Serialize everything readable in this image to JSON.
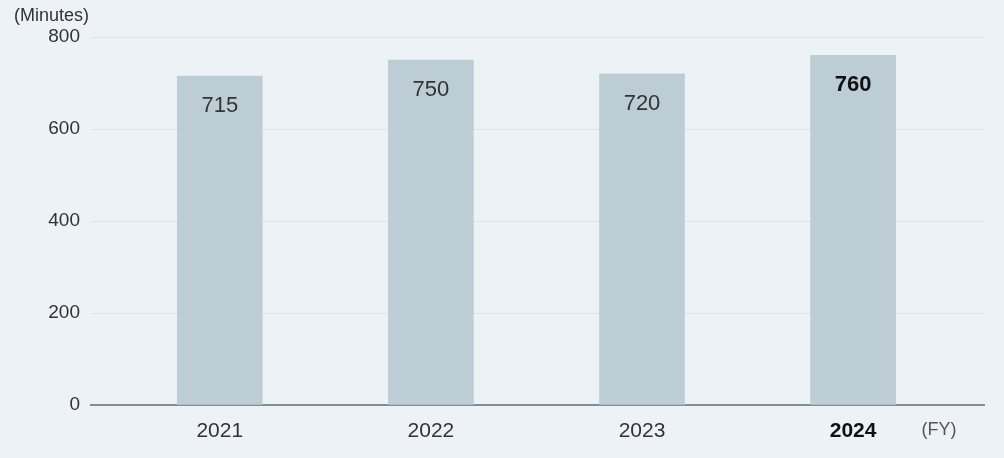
{
  "chart_data": {
    "type": "bar",
    "ylabel": "(Minutes)",
    "xlabel": "(FY)",
    "categories": [
      "2021",
      "2022",
      "2023",
      "2024"
    ],
    "values": [
      715,
      750,
      720,
      760
    ],
    "color": "#bccdd6",
    "ylim": [
      0,
      800
    ],
    "yticks": [
      0,
      200,
      400,
      600,
      800
    ],
    "grid": "y",
    "data_labels": true
  }
}
